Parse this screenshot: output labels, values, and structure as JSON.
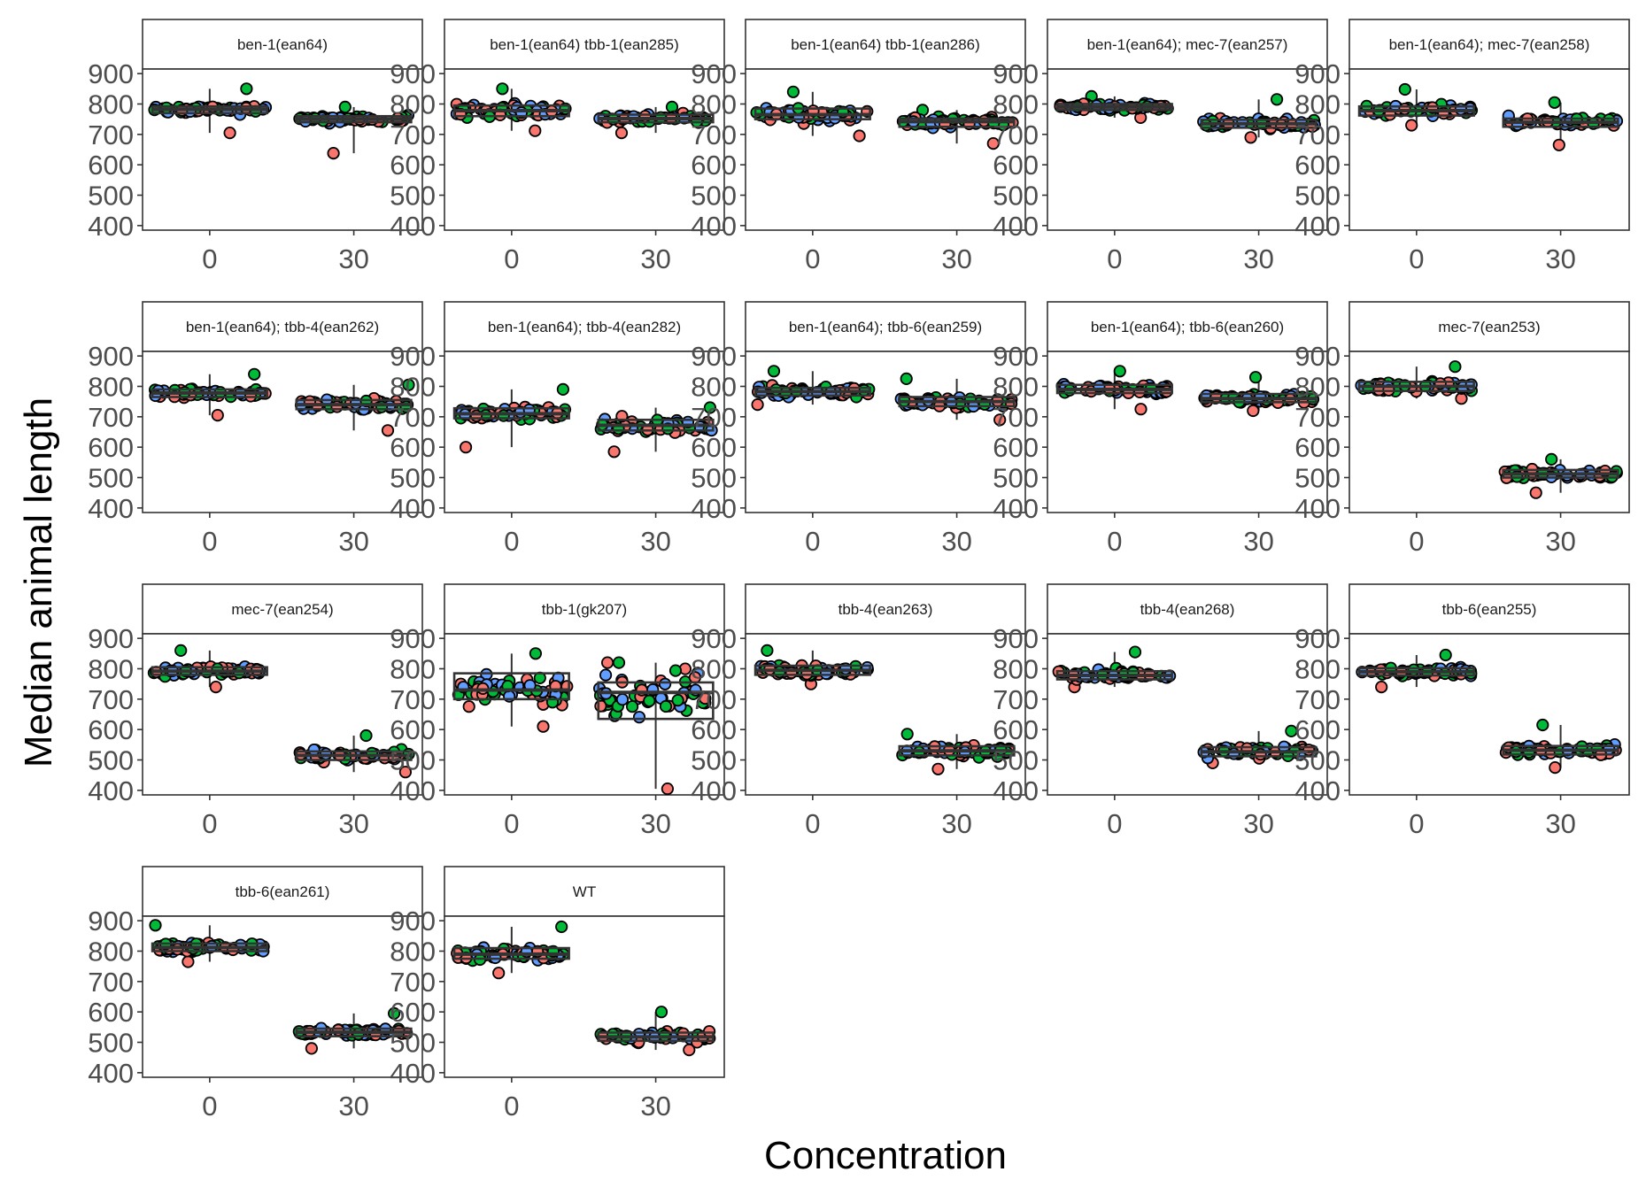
{
  "chart_data": {
    "type": "scatter",
    "subtype": "faceted box plot with jittered points",
    "xlabel": "Concentration",
    "ylabel": "Median animal length",
    "x_categories": [
      "0",
      "30"
    ],
    "y_ticks": [
      400,
      500,
      600,
      700,
      800,
      900
    ],
    "ylim": [
      385,
      915
    ],
    "grid": false,
    "legend": "none",
    "point_colors": [
      "#F8766D",
      "#00BA38",
      "#619CFF"
    ],
    "facets": [
      {
        "label": "ben-1(ean64)",
        "groups": [
          {
            "x": "0",
            "box": {
              "q1": 770,
              "median": 782,
              "q3": 792
            },
            "range": [
              705,
              850
            ]
          },
          {
            "x": "30",
            "box": {
              "q1": 740,
              "median": 750,
              "q3": 760
            },
            "range": [
              638,
              790
            ]
          }
        ]
      },
      {
        "label": "ben-1(ean64) tbb-1(ean285)",
        "groups": [
          {
            "x": "0",
            "box": {
              "q1": 760,
              "median": 778,
              "q3": 795
            },
            "range": [
              712,
              850
            ]
          },
          {
            "x": "30",
            "box": {
              "q1": 740,
              "median": 752,
              "q3": 765
            },
            "range": [
              705,
              790
            ]
          }
        ]
      },
      {
        "label": "ben-1(ean64) tbb-1(ean286)",
        "groups": [
          {
            "x": "0",
            "box": {
              "q1": 750,
              "median": 765,
              "q3": 785
            },
            "range": [
              695,
              840
            ]
          },
          {
            "x": "30",
            "box": {
              "q1": 725,
              "median": 742,
              "q3": 752
            },
            "range": [
              670,
              780
            ]
          }
        ]
      },
      {
        "label": "ben-1(ean64); mec-7(ean257)",
        "groups": [
          {
            "x": "0",
            "box": {
              "q1": 780,
              "median": 790,
              "q3": 800
            },
            "range": [
              755,
              825
            ]
          },
          {
            "x": "30",
            "box": {
              "q1": 722,
              "median": 735,
              "q3": 748
            },
            "range": [
              690,
              815
            ]
          }
        ]
      },
      {
        "label": "ben-1(ean64); mec-7(ean258)",
        "groups": [
          {
            "x": "0",
            "box": {
              "q1": 762,
              "median": 778,
              "q3": 792
            },
            "range": [
              730,
              848
            ]
          },
          {
            "x": "30",
            "box": {
              "q1": 725,
              "median": 740,
              "q3": 752
            },
            "range": [
              665,
              805
            ]
          }
        ]
      },
      {
        "label": "ben-1(ean64); tbb-4(ean262)",
        "groups": [
          {
            "x": "0",
            "box": {
              "q1": 765,
              "median": 778,
              "q3": 790
            },
            "range": [
              705,
              840
            ]
          },
          {
            "x": "30",
            "box": {
              "q1": 725,
              "median": 740,
              "q3": 755
            },
            "range": [
              655,
              805
            ]
          }
        ]
      },
      {
        "label": "ben-1(ean64); tbb-4(ean282)",
        "groups": [
          {
            "x": "0",
            "box": {
              "q1": 695,
              "median": 710,
              "q3": 728
            },
            "range": [
              600,
              790
            ]
          },
          {
            "x": "30",
            "box": {
              "q1": 655,
              "median": 672,
              "q3": 690
            },
            "range": [
              585,
              730
            ]
          }
        ]
      },
      {
        "label": "ben-1(ean64); tbb-6(ean259)",
        "groups": [
          {
            "x": "0",
            "box": {
              "q1": 770,
              "median": 783,
              "q3": 795
            },
            "range": [
              740,
              850
            ]
          },
          {
            "x": "30",
            "box": {
              "q1": 735,
              "median": 750,
              "q3": 765
            },
            "range": [
              690,
              825
            ]
          }
        ]
      },
      {
        "label": "ben-1(ean64); tbb-6(ean260)",
        "groups": [
          {
            "x": "0",
            "box": {
              "q1": 778,
              "median": 790,
              "q3": 805
            },
            "range": [
              725,
              850
            ]
          },
          {
            "x": "30",
            "box": {
              "q1": 748,
              "median": 760,
              "q3": 775
            },
            "range": [
              720,
              830
            ]
          }
        ]
      },
      {
        "label": "mec-7(ean253)",
        "groups": [
          {
            "x": "0",
            "box": {
              "q1": 785,
              "median": 800,
              "q3": 815
            },
            "range": [
              760,
              865
            ]
          },
          {
            "x": "30",
            "box": {
              "q1": 500,
              "median": 512,
              "q3": 525
            },
            "range": [
              450,
              560
            ]
          }
        ]
      },
      {
        "label": "mec-7(ean254)",
        "groups": [
          {
            "x": "0",
            "box": {
              "q1": 780,
              "median": 792,
              "q3": 805
            },
            "range": [
              740,
              860
            ]
          },
          {
            "x": "30",
            "box": {
              "q1": 500,
              "median": 515,
              "q3": 528
            },
            "range": [
              460,
              580
            ]
          }
        ]
      },
      {
        "label": "tbb-1(gk207)",
        "groups": [
          {
            "x": "0",
            "box": {
              "q1": 700,
              "median": 730,
              "q3": 785
            },
            "range": [
              610,
              850
            ]
          },
          {
            "x": "30",
            "box": {
              "q1": 635,
              "median": 722,
              "q3": 755
            },
            "range": [
              405,
              820
            ]
          }
        ]
      },
      {
        "label": "tbb-4(ean263)",
        "groups": [
          {
            "x": "0",
            "box": {
              "q1": 780,
              "median": 795,
              "q3": 810
            },
            "range": [
              750,
              860
            ]
          },
          {
            "x": "30",
            "box": {
              "q1": 515,
              "median": 530,
              "q3": 545
            },
            "range": [
              470,
              585
            ]
          }
        ]
      },
      {
        "label": "tbb-4(ean268)",
        "groups": [
          {
            "x": "0",
            "box": {
              "q1": 765,
              "median": 778,
              "q3": 792
            },
            "range": [
              740,
              855
            ]
          },
          {
            "x": "30",
            "box": {
              "q1": 512,
              "median": 527,
              "q3": 542
            },
            "range": [
              490,
              595
            ]
          }
        ]
      },
      {
        "label": "tbb-6(ean255)",
        "groups": [
          {
            "x": "0",
            "box": {
              "q1": 778,
              "median": 790,
              "q3": 802
            },
            "range": [
              740,
              845
            ]
          },
          {
            "x": "30",
            "box": {
              "q1": 518,
              "median": 532,
              "q3": 546
            },
            "range": [
              475,
              615
            ]
          }
        ]
      },
      {
        "label": "tbb-6(ean261)",
        "groups": [
          {
            "x": "0",
            "box": {
              "q1": 800,
              "median": 812,
              "q3": 825
            },
            "range": [
              765,
              885
            ]
          },
          {
            "x": "30",
            "box": {
              "q1": 520,
              "median": 533,
              "q3": 545
            },
            "range": [
              480,
              595
            ]
          }
        ]
      },
      {
        "label": "WT",
        "groups": [
          {
            "x": "0",
            "box": {
              "q1": 775,
              "median": 790,
              "q3": 810
            },
            "range": [
              728,
              880
            ]
          },
          {
            "x": "30",
            "box": {
              "q1": 505,
              "median": 518,
              "q3": 532
            },
            "range": [
              475,
              600
            ]
          }
        ]
      }
    ]
  }
}
